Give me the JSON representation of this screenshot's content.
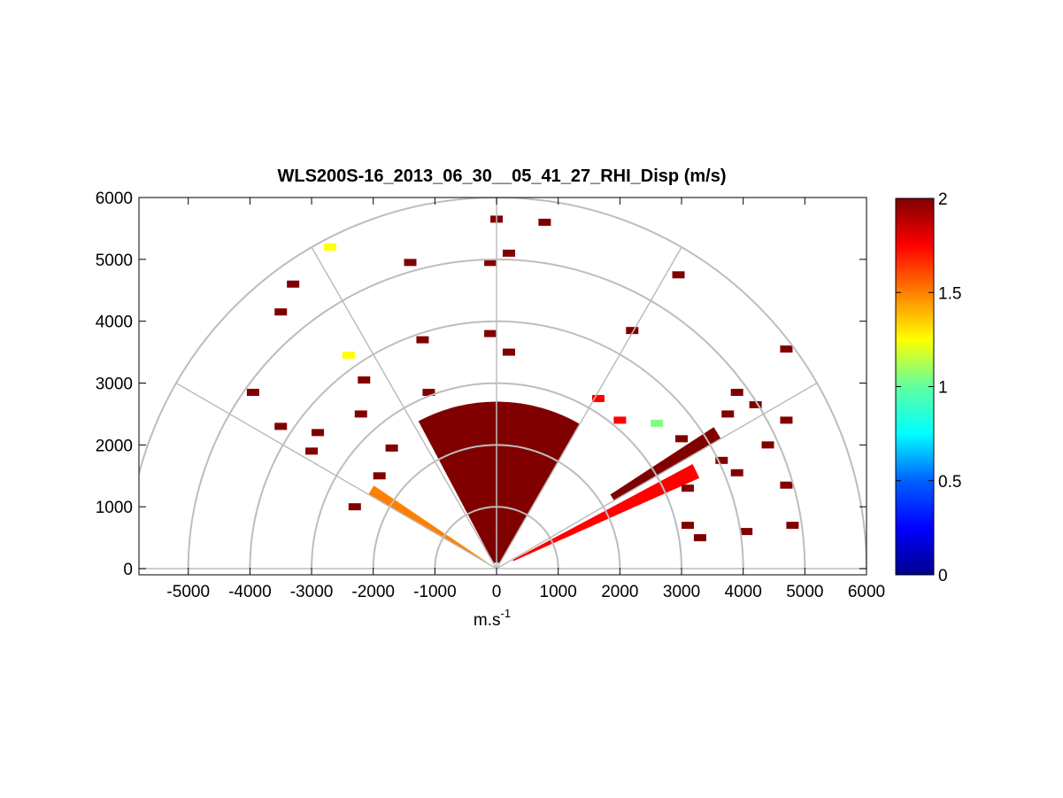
{
  "chart_data": {
    "type": "heatmap",
    "subtype": "polar-rhi-sector",
    "title": "WLS200S-16_2013_06_30__05_41_27_RHI_Disp (m/s)",
    "xlabel": "m.s",
    "xlabel_sup": "-1",
    "ylabel": "",
    "xlim": [
      -5800,
      6000
    ],
    "ylim": [
      -100,
      6000
    ],
    "x_ticks": [
      -5000,
      -4000,
      -3000,
      -2000,
      -1000,
      0,
      1000,
      2000,
      3000,
      4000,
      5000,
      6000
    ],
    "y_ticks": [
      0,
      1000,
      2000,
      3000,
      4000,
      5000,
      6000
    ],
    "range_rings": [
      1000,
      2000,
      3000,
      4000,
      5000,
      6000
    ],
    "radial_lines_deg": [
      0,
      30,
      60,
      90,
      120,
      150,
      180
    ],
    "colorbar": {
      "range": [
        0,
        2
      ],
      "ticks": [
        0,
        0.5,
        1,
        1.5,
        2
      ],
      "colormap": "jet",
      "colors": [
        "#00008f",
        "#0000ff",
        "#0080ff",
        "#00ffff",
        "#80ff80",
        "#ffff00",
        "#ff8000",
        "#ff0000",
        "#800000"
      ]
    },
    "sectors": [
      {
        "name": "main",
        "az_from": 60,
        "az_to": 118,
        "r_from": 100,
        "r_to": 2700,
        "value": 1.95
      },
      {
        "name": "left-beam",
        "az_from": 146,
        "az_to": 150,
        "r_from": 200,
        "r_to": 2400,
        "value": 1.6
      },
      {
        "name": "right-beam",
        "az_from": 24,
        "az_to": 28,
        "r_from": 300,
        "r_to": 3600,
        "value": 1.7
      },
      {
        "name": "right-far",
        "az_from": 30,
        "az_to": 33,
        "r_from": 2200,
        "r_to": 4200,
        "value": 1.95
      }
    ],
    "cells": [
      {
        "x": 0,
        "y": 5650,
        "v": 2
      },
      {
        "x": 780,
        "y": 5600,
        "v": 2
      },
      {
        "x": -2700,
        "y": 5200,
        "v": 1.15
      },
      {
        "x": -1400,
        "y": 4950,
        "v": 2
      },
      {
        "x": -100,
        "y": 4950,
        "v": 2
      },
      {
        "x": 200,
        "y": 5100,
        "v": 2
      },
      {
        "x": -3300,
        "y": 4600,
        "v": 2
      },
      {
        "x": -3500,
        "y": 4150,
        "v": 2
      },
      {
        "x": -2400,
        "y": 3450,
        "v": 1.25
      },
      {
        "x": 2950,
        "y": 4750,
        "v": 2
      },
      {
        "x": 2200,
        "y": 3850,
        "v": 2
      },
      {
        "x": 4700,
        "y": 3550,
        "v": 2
      },
      {
        "x": -1100,
        "y": 2850,
        "v": 2
      },
      {
        "x": -2150,
        "y": 3050,
        "v": 2
      },
      {
        "x": -3950,
        "y": 2850,
        "v": 2
      },
      {
        "x": -3500,
        "y": 2300,
        "v": 2
      },
      {
        "x": -1200,
        "y": 3700,
        "v": 2
      },
      {
        "x": -100,
        "y": 3800,
        "v": 2
      },
      {
        "x": 200,
        "y": 3500,
        "v": 2
      },
      {
        "x": 1650,
        "y": 2750,
        "v": 1.7
      },
      {
        "x": 2000,
        "y": 2400,
        "v": 1.8
      },
      {
        "x": 2600,
        "y": 2350,
        "v": 0.9
      },
      {
        "x": 3900,
        "y": 2850,
        "v": 2
      },
      {
        "x": 3750,
        "y": 2500,
        "v": 2
      },
      {
        "x": 4200,
        "y": 2650,
        "v": 2
      },
      {
        "x": 4400,
        "y": 2000,
        "v": 2
      },
      {
        "x": 3000,
        "y": 2100,
        "v": 2
      },
      {
        "x": 3650,
        "y": 1750,
        "v": 2
      },
      {
        "x": 3900,
        "y": 1550,
        "v": 2
      },
      {
        "x": 3100,
        "y": 1300,
        "v": 2
      },
      {
        "x": 4700,
        "y": 2400,
        "v": 2
      },
      {
        "x": 4700,
        "y": 1350,
        "v": 2
      },
      {
        "x": 4800,
        "y": 700,
        "v": 2
      },
      {
        "x": 4050,
        "y": 600,
        "v": 2
      },
      {
        "x": 3100,
        "y": 700,
        "v": 2
      },
      {
        "x": 3300,
        "y": 500,
        "v": 2
      },
      {
        "x": -2300,
        "y": 1000,
        "v": 2
      },
      {
        "x": -3000,
        "y": 1900,
        "v": 2
      },
      {
        "x": -2900,
        "y": 2200,
        "v": 2
      },
      {
        "x": -2200,
        "y": 2500,
        "v": 2
      },
      {
        "x": -1700,
        "y": 1950,
        "v": 2
      },
      {
        "x": -1900,
        "y": 1500,
        "v": 2
      }
    ]
  }
}
